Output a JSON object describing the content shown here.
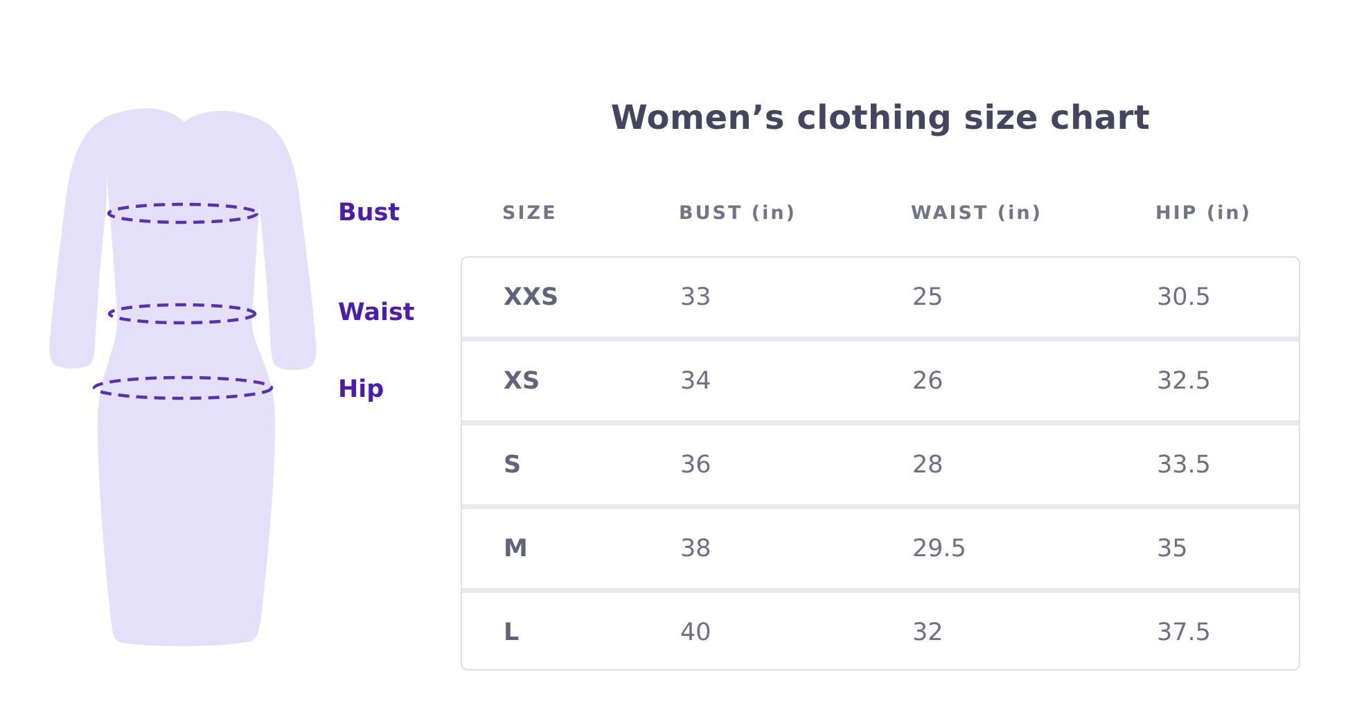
{
  "title": "Women’s clothing size chart",
  "figure": {
    "bust_label": "Bust",
    "waist_label": "Waist",
    "hip_label": "Hip"
  },
  "table": {
    "headers": [
      "SIZE",
      "BUST (in)",
      "WAIST (in)",
      "HIP (in)"
    ],
    "rows": [
      [
        "XXS",
        "33",
        "25",
        "30.5"
      ],
      [
        "XS",
        "34",
        "26",
        "32.5"
      ],
      [
        "S",
        "36",
        "28",
        "33.5"
      ],
      [
        "M",
        "38",
        "29.5",
        "35"
      ],
      [
        "L",
        "40",
        "32",
        "37.5"
      ]
    ]
  },
  "colors": {
    "accent_purple": "#4b1daa",
    "dash_purple": "#5a30b2",
    "dress_fill": "#e4e0fa",
    "title_text": "#45455f",
    "table_text": "#6e6e84",
    "header_text": "#73738a",
    "row_border": "#dfdfe5",
    "row_divider": "#e9e9ed"
  },
  "chart_data": {
    "type": "table",
    "title": "Women’s clothing size chart",
    "columns": [
      "SIZE",
      "BUST (in)",
      "WAIST (in)",
      "HIP (in)"
    ],
    "units": "inches",
    "rows": [
      {
        "size": "XXS",
        "bust": 33,
        "waist": 25,
        "hip": 30.5
      },
      {
        "size": "XS",
        "bust": 34,
        "waist": 26,
        "hip": 32.5
      },
      {
        "size": "S",
        "bust": 36,
        "waist": 28,
        "hip": 33.5
      },
      {
        "size": "M",
        "bust": 38,
        "waist": 29.5,
        "hip": 35
      },
      {
        "size": "L",
        "bust": 40,
        "waist": 32,
        "hip": 37.5
      }
    ],
    "annotations": [
      "Bust",
      "Waist",
      "Hip"
    ]
  }
}
